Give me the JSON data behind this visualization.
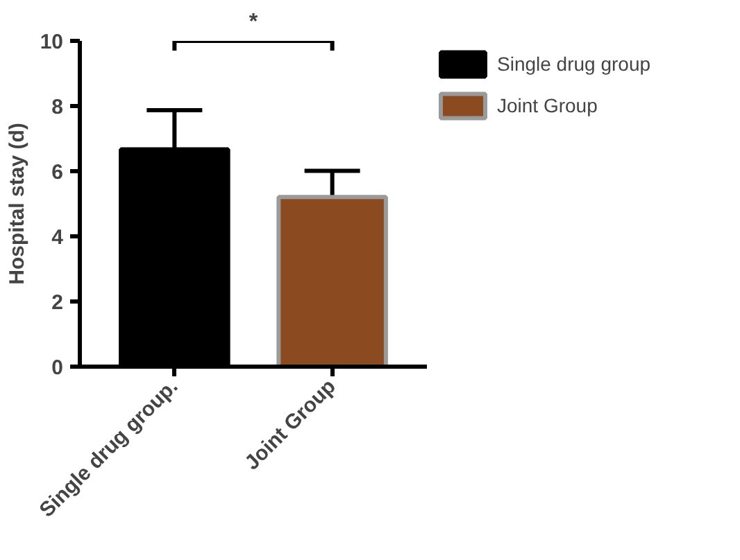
{
  "chart_data": {
    "type": "bar",
    "ylabel": "Hospital stay (d)",
    "categories": [
      "Single drug group.",
      "Joint Group"
    ],
    "series": [
      {
        "name": "Single drug group",
        "color": "#000000",
        "values": [
          6.67,
          null
        ],
        "errors": [
          1.2,
          null
        ]
      },
      {
        "name": "Joint Group",
        "color": "#8b4a1f",
        "values": [
          null,
          5.21
        ],
        "errors": [
          null,
          0.8
        ]
      }
    ],
    "ylim": [
      0,
      10
    ],
    "yticks": [
      0,
      2,
      4,
      6,
      8,
      10
    ],
    "legend": "top right",
    "annotations": [
      "*"
    ]
  }
}
